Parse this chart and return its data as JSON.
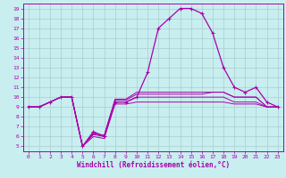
{
  "xlabel": "Windchill (Refroidissement éolien,°C)",
  "xlim": [
    -0.5,
    23.5
  ],
  "ylim": [
    4.5,
    19.5
  ],
  "yticks": [
    5,
    6,
    7,
    8,
    9,
    10,
    11,
    12,
    13,
    14,
    15,
    16,
    17,
    18,
    19
  ],
  "xticks": [
    0,
    1,
    2,
    3,
    4,
    5,
    6,
    7,
    8,
    9,
    10,
    11,
    12,
    13,
    14,
    15,
    16,
    17,
    18,
    19,
    20,
    21,
    22,
    23
  ],
  "bg_color": "#c8eef0",
  "grid_color": "#aaccd0",
  "line_color": "#aa00aa",
  "main_y": [
    9,
    9,
    9.5,
    10,
    10,
    5,
    6.5,
    6.0,
    9.5,
    9.5,
    10,
    12.5,
    17,
    18,
    19,
    19,
    18.5,
    16.5,
    13,
    11,
    10.5,
    11,
    9.5,
    9
  ],
  "flat1_y": [
    9,
    9,
    9.5,
    10,
    10,
    5,
    6.0,
    5.8,
    9.3,
    9.3,
    9.5,
    9.5,
    9.5,
    9.5,
    9.5,
    9.5,
    9.5,
    9.5,
    9.5,
    9.3,
    9.3,
    9.3,
    9,
    9
  ],
  "flat2_y": [
    9,
    9,
    9.5,
    10,
    10,
    5,
    6.2,
    6.0,
    9.5,
    9.5,
    10,
    10,
    10,
    10,
    10,
    10,
    10,
    10,
    10,
    9.5,
    9.5,
    9.5,
    9,
    9
  ],
  "flat3_y": [
    9,
    9,
    9.5,
    10,
    10,
    5,
    6.3,
    6.1,
    9.7,
    9.7,
    10.3,
    10.3,
    10.3,
    10.3,
    10.3,
    10.3,
    10.3,
    10.5,
    10.5,
    10,
    10,
    10,
    9,
    9
  ],
  "flat4_y": [
    9,
    9,
    9.5,
    10,
    10,
    5,
    6.4,
    6.1,
    9.8,
    9.8,
    10.5,
    10.5,
    10.5,
    10.5,
    10.5,
    10.5,
    10.5,
    10.5,
    10.5,
    10,
    10,
    10,
    9,
    9
  ]
}
